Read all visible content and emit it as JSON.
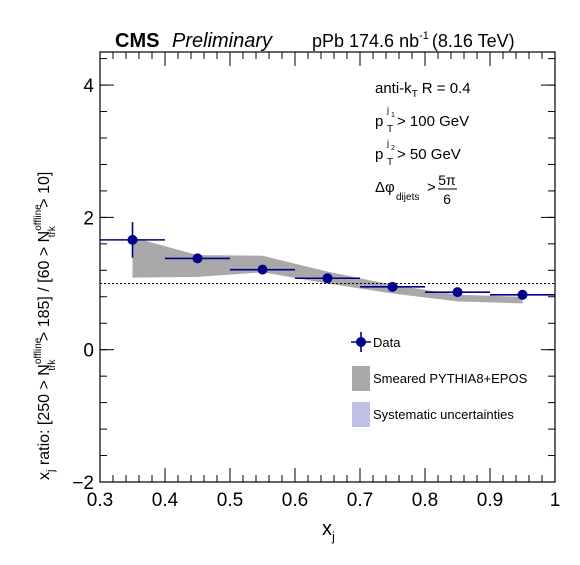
{
  "header": {
    "experiment": "CMS",
    "status": "Preliminary",
    "lumi_prefix": "pPb 174.6 nb",
    "lumi_exp": "-1",
    "energy": "(8.16 TeV)"
  },
  "cuts": {
    "algo_a": "anti-k",
    "algo_sub": "T",
    "algo_b": "R = 0.4",
    "pt1_base": "p",
    "pt1_sup": "j",
    "pt1_sup2": "1",
    "pt1_sub": "T",
    "pt1_val": "> 100 GeV",
    "pt2_base": "p",
    "pt2_sup": "j",
    "pt2_sup2": "2",
    "pt2_sub": "T",
    "pt2_val": "> 50 GeV",
    "dphi_base": "Δφ",
    "dphi_sub": "dijets",
    "dphi_gt": ">",
    "dphi_num": "5π",
    "dphi_den": "6"
  },
  "axis_labels": {
    "x_base": "x",
    "x_sub": "j",
    "y_1": "x",
    "y_1_sub": "j",
    "y_2": " ratio: [250 > N",
    "y_2_sup": "offline",
    "y_2_sub": "trk",
    "y_3": " > 185] / [60 > N",
    "y_3_sup": "offline",
    "y_3_sub": "trk",
    "y_4": " > 10]"
  },
  "legend": {
    "data": "Data",
    "pythia": "Smeared PYTHIA8+EPOS",
    "syst": "Systematic uncertainties"
  },
  "colors": {
    "data": "#00008b",
    "pythia": "#a9a9a9",
    "syst": "#c0c0e6"
  },
  "chart_data": {
    "type": "scatter",
    "xlim": [
      0.3,
      1.0
    ],
    "ylim": [
      -2,
      4.5
    ],
    "x_ticks": [
      "0.3",
      "0.4",
      "0.5",
      "0.6",
      "0.7",
      "0.8",
      "0.9",
      "1"
    ],
    "y_ticks": [
      "−2",
      "0",
      "2",
      "4"
    ],
    "reference_line": 1.0,
    "series": [
      {
        "name": "Data",
        "x": [
          0.35,
          0.45,
          0.55,
          0.65,
          0.75,
          0.85,
          0.95
        ],
        "xerr": [
          0.05,
          0.05,
          0.05,
          0.05,
          0.05,
          0.05,
          0.05
        ],
        "y": [
          1.66,
          1.38,
          1.21,
          1.08,
          0.95,
          0.87,
          0.83
        ],
        "yerr": [
          0.27,
          0.05,
          0.04,
          0.03,
          0.03,
          0.02,
          0.02
        ]
      },
      {
        "name": "Smeared PYTHIA8+EPOS",
        "x": [
          0.35,
          0.45,
          0.55,
          0.65,
          0.75,
          0.85,
          0.95
        ],
        "y_low": [
          1.09,
          1.1,
          1.17,
          1.0,
          0.85,
          0.73,
          0.7
        ],
        "y_high": [
          1.7,
          1.43,
          1.42,
          1.18,
          0.98,
          0.83,
          0.8
        ]
      }
    ]
  }
}
